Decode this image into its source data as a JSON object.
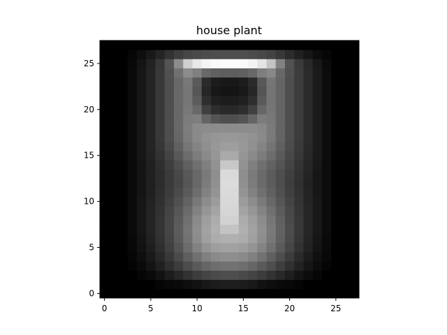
{
  "chart_data": {
    "type": "heatmap",
    "title": "house plant",
    "xlabel": "",
    "ylabel": "",
    "colormap": "grayscale",
    "xlim": [
      -0.5,
      27.5
    ],
    "ylim": [
      27.5,
      -0.5
    ],
    "xticks": [
      0,
      5,
      10,
      15,
      20,
      25
    ],
    "yticks": [
      0,
      5,
      10,
      15,
      20,
      25
    ],
    "xtick_labels": [
      "0",
      "5",
      "10",
      "15",
      "20",
      "25"
    ],
    "ytick_labels": [
      "0",
      "5",
      "10",
      "15",
      "20",
      "25"
    ],
    "grid": false,
    "value_range": [
      0,
      255
    ],
    "values": [
      [
        0,
        0,
        0,
        0,
        0,
        0,
        0,
        0,
        0,
        0,
        0,
        0,
        0,
        0,
        0,
        0,
        0,
        0,
        0,
        0,
        0,
        0,
        0,
        0,
        0,
        0,
        0,
        0
      ],
      [
        0,
        0,
        0,
        0,
        0,
        0,
        5,
        8,
        10,
        14,
        18,
        24,
        28,
        30,
        30,
        28,
        24,
        18,
        14,
        10,
        8,
        5,
        0,
        0,
        0,
        0,
        0,
        0
      ],
      [
        0,
        0,
        0,
        0,
        5,
        10,
        18,
        28,
        38,
        50,
        60,
        68,
        74,
        78,
        78,
        74,
        68,
        60,
        50,
        40,
        30,
        20,
        12,
        6,
        0,
        0,
        0,
        0
      ],
      [
        0,
        0,
        0,
        4,
        10,
        20,
        32,
        46,
        60,
        76,
        90,
        102,
        110,
        114,
        114,
        110,
        102,
        90,
        78,
        62,
        48,
        34,
        22,
        12,
        5,
        0,
        0,
        0
      ],
      [
        0,
        0,
        0,
        6,
        14,
        26,
        40,
        56,
        74,
        94,
        112,
        128,
        138,
        142,
        142,
        138,
        128,
        114,
        96,
        78,
        60,
        42,
        28,
        16,
        8,
        0,
        0,
        0
      ],
      [
        0,
        0,
        0,
        8,
        18,
        30,
        46,
        64,
        84,
        108,
        130,
        148,
        158,
        162,
        162,
        158,
        148,
        132,
        112,
        90,
        70,
        50,
        34,
        20,
        10,
        0,
        0,
        0
      ],
      [
        0,
        0,
        0,
        8,
        20,
        34,
        50,
        68,
        90,
        114,
        140,
        160,
        172,
        176,
        176,
        172,
        160,
        142,
        120,
        96,
        74,
        54,
        36,
        22,
        10,
        0,
        0,
        0
      ],
      [
        0,
        0,
        0,
        10,
        22,
        36,
        52,
        70,
        92,
        116,
        142,
        162,
        176,
        196,
        196,
        176,
        162,
        144,
        122,
        98,
        76,
        56,
        38,
        24,
        12,
        0,
        0,
        0
      ],
      [
        0,
        0,
        0,
        10,
        22,
        36,
        52,
        70,
        90,
        112,
        138,
        158,
        172,
        210,
        210,
        172,
        158,
        140,
        118,
        96,
        74,
        56,
        38,
        24,
        12,
        0,
        0,
        0
      ],
      [
        0,
        0,
        0,
        10,
        22,
        36,
        50,
        68,
        86,
        106,
        130,
        150,
        164,
        214,
        214,
        164,
        150,
        132,
        112,
        92,
        72,
        54,
        38,
        24,
        12,
        0,
        0,
        0
      ],
      [
        0,
        0,
        0,
        10,
        22,
        34,
        48,
        64,
        80,
        98,
        120,
        140,
        156,
        216,
        216,
        156,
        140,
        122,
        104,
        86,
        68,
        52,
        36,
        24,
        12,
        0,
        0,
        0
      ],
      [
        0,
        0,
        0,
        10,
        20,
        32,
        46,
        60,
        74,
        90,
        110,
        130,
        148,
        218,
        218,
        148,
        130,
        112,
        96,
        80,
        64,
        50,
        36,
        22,
        12,
        0,
        0,
        0
      ],
      [
        0,
        0,
        0,
        10,
        20,
        32,
        44,
        58,
        70,
        86,
        104,
        124,
        144,
        220,
        220,
        144,
        124,
        106,
        92,
        78,
        62,
        48,
        34,
        22,
        12,
        0,
        0,
        0
      ],
      [
        0,
        0,
        0,
        10,
        20,
        32,
        44,
        58,
        72,
        88,
        104,
        122,
        142,
        218,
        218,
        142,
        122,
        106,
        92,
        78,
        64,
        50,
        36,
        22,
        12,
        0,
        0,
        0
      ],
      [
        0,
        0,
        0,
        10,
        20,
        32,
        46,
        62,
        78,
        96,
        112,
        128,
        146,
        200,
        200,
        146,
        128,
        112,
        98,
        84,
        68,
        52,
        38,
        24,
        12,
        0,
        0,
        0
      ],
      [
        0,
        0,
        0,
        10,
        22,
        34,
        50,
        68,
        88,
        108,
        124,
        138,
        150,
        170,
        170,
        150,
        138,
        124,
        108,
        90,
        72,
        56,
        40,
        26,
        12,
        0,
        0,
        0
      ],
      [
        0,
        0,
        0,
        10,
        22,
        36,
        54,
        74,
        96,
        118,
        132,
        144,
        152,
        158,
        158,
        152,
        144,
        132,
        116,
        96,
        76,
        58,
        42,
        26,
        12,
        0,
        0,
        0
      ],
      [
        0,
        0,
        0,
        10,
        22,
        36,
        56,
        78,
        102,
        124,
        138,
        146,
        150,
        152,
        152,
        150,
        146,
        138,
        122,
        100,
        78,
        60,
        42,
        26,
        12,
        0,
        0,
        0
      ],
      [
        0,
        0,
        0,
        10,
        22,
        36,
        56,
        78,
        104,
        126,
        138,
        140,
        140,
        140,
        140,
        140,
        140,
        136,
        122,
        100,
        78,
        60,
        42,
        26,
        12,
        0,
        0,
        0
      ],
      [
        0,
        0,
        0,
        10,
        22,
        36,
        56,
        78,
        104,
        124,
        126,
        100,
        84,
        78,
        78,
        84,
        100,
        124,
        120,
        100,
        78,
        60,
        42,
        26,
        12,
        0,
        0,
        0
      ],
      [
        0,
        0,
        0,
        10,
        22,
        36,
        56,
        78,
        104,
        120,
        104,
        64,
        46,
        40,
        40,
        46,
        64,
        102,
        118,
        100,
        78,
        60,
        42,
        26,
        12,
        0,
        0,
        0
      ],
      [
        0,
        0,
        0,
        10,
        22,
        36,
        56,
        78,
        104,
        118,
        92,
        46,
        32,
        28,
        28,
        32,
        46,
        90,
        116,
        100,
        78,
        60,
        42,
        26,
        12,
        0,
        0,
        0
      ],
      [
        0,
        0,
        0,
        10,
        22,
        36,
        56,
        78,
        104,
        118,
        86,
        38,
        24,
        20,
        20,
        24,
        38,
        84,
        116,
        100,
        78,
        60,
        42,
        26,
        12,
        0,
        0,
        0
      ],
      [
        0,
        0,
        0,
        10,
        22,
        36,
        56,
        78,
        104,
        120,
        90,
        42,
        28,
        24,
        24,
        28,
        42,
        88,
        118,
        100,
        78,
        60,
        42,
        26,
        12,
        0,
        0,
        0
      ],
      [
        0,
        0,
        0,
        10,
        22,
        36,
        56,
        80,
        112,
        140,
        128,
        104,
        96,
        94,
        94,
        96,
        104,
        126,
        136,
        104,
        80,
        60,
        42,
        26,
        12,
        0,
        0,
        0
      ],
      [
        0,
        0,
        0,
        8,
        20,
        34,
        54,
        84,
        140,
        206,
        232,
        244,
        250,
        252,
        252,
        250,
        244,
        228,
        196,
        130,
        82,
        58,
        40,
        24,
        10,
        0,
        0,
        0
      ],
      [
        0,
        0,
        0,
        6,
        14,
        24,
        36,
        50,
        62,
        70,
        74,
        76,
        78,
        78,
        78,
        78,
        76,
        72,
        66,
        56,
        44,
        32,
        22,
        12,
        6,
        0,
        0,
        0
      ],
      [
        0,
        0,
        0,
        0,
        0,
        0,
        0,
        0,
        0,
        0,
        0,
        0,
        0,
        0,
        0,
        0,
        0,
        0,
        0,
        0,
        0,
        0,
        0,
        0,
        0,
        0,
        0,
        0
      ]
    ]
  }
}
